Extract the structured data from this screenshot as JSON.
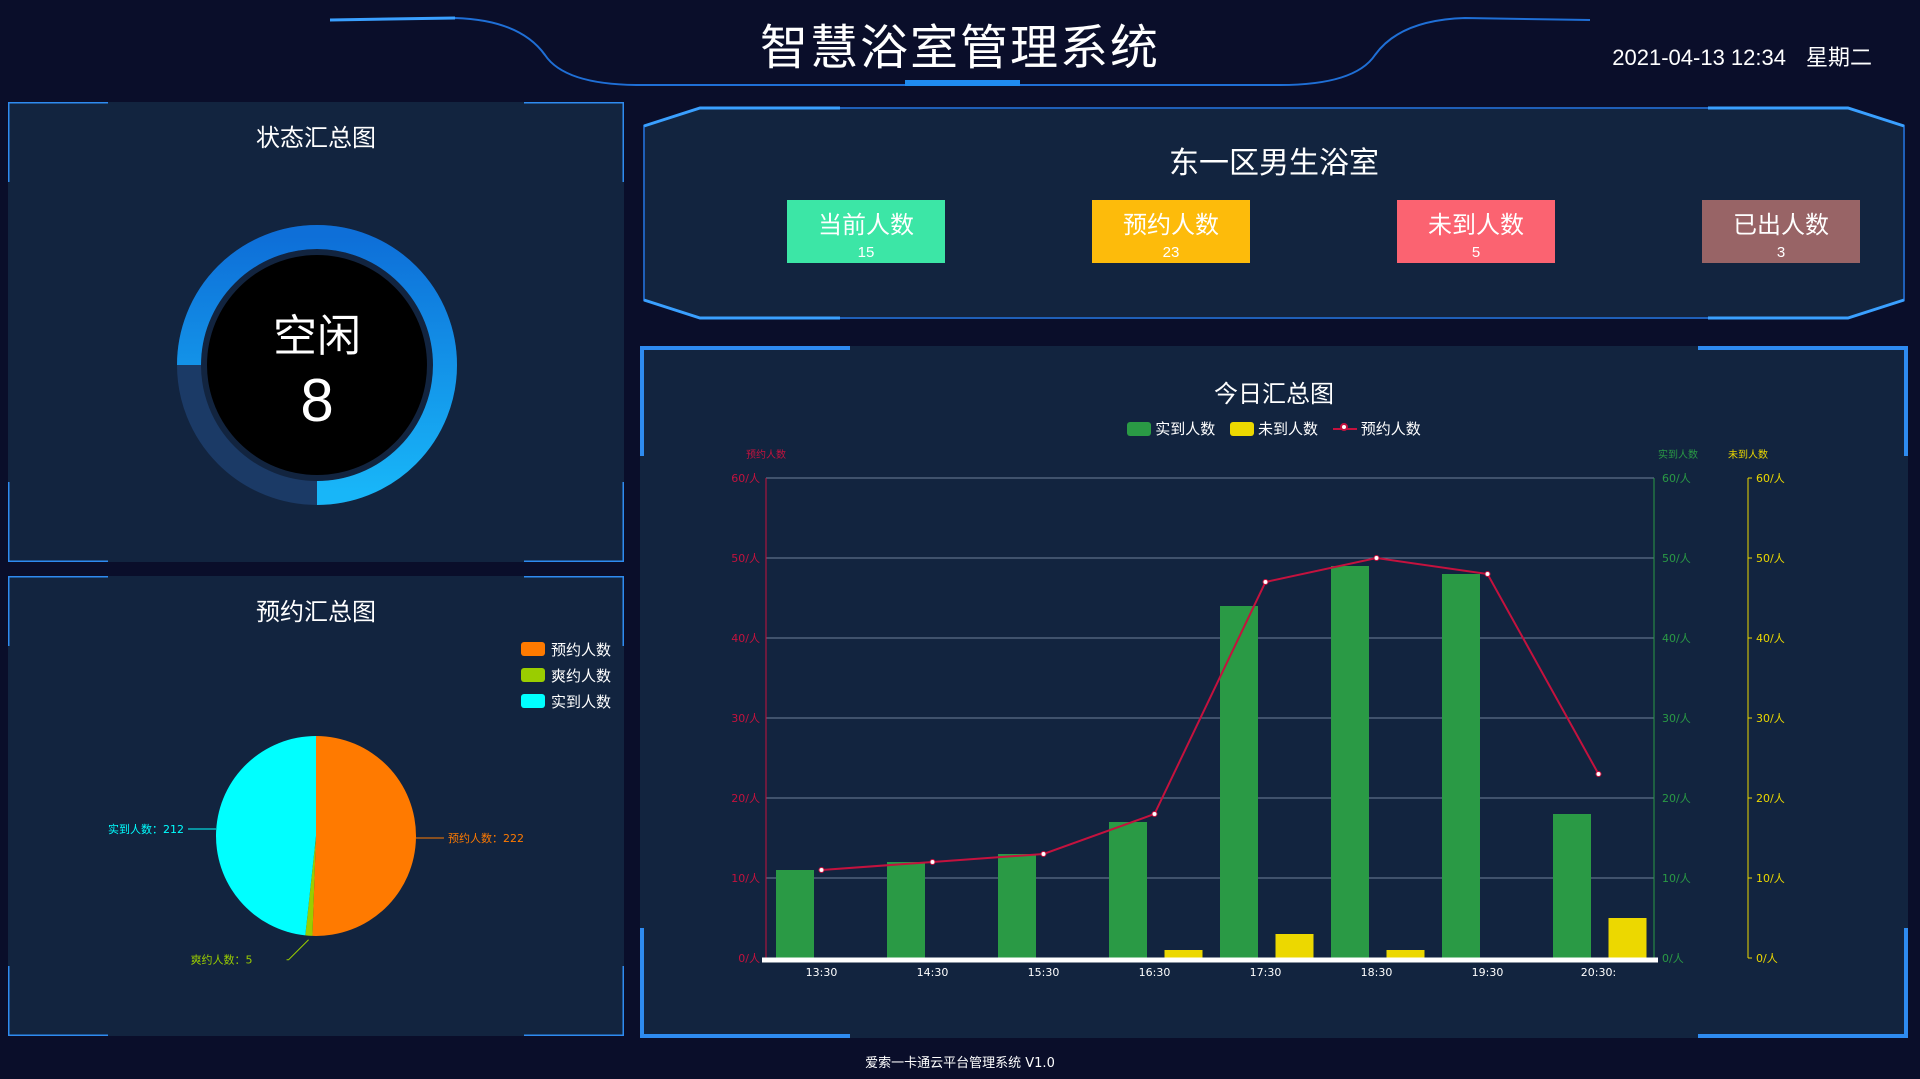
{
  "header": {
    "title": "智慧浴室管理系统",
    "date": "2021-04-13 12:34",
    "weekday": "星期二"
  },
  "status_panel": {
    "title": "状态汇总图",
    "state_label": "空闲",
    "state_value": "8",
    "ring_fraction": 0.75,
    "colors": {
      "ring": "#1a9ff0",
      "track": "#1b3a66",
      "center": "#000000"
    }
  },
  "bathroom_panel": {
    "title": "东一区男生浴室",
    "stats": [
      {
        "label": "当前人数",
        "value": "15",
        "color": "#3ce6a6"
      },
      {
        "label": "预约人数",
        "value": "23",
        "color": "#fdbb0b"
      },
      {
        "label": "未到人数",
        "value": "5",
        "color": "#fb6371"
      },
      {
        "label": "已出人数",
        "value": "3",
        "color": "#986466"
      }
    ]
  },
  "reserve_panel": {
    "title": "预约汇总图",
    "legend": [
      {
        "label": "预约人数",
        "color": "#ff7a00"
      },
      {
        "label": "爽约人数",
        "color": "#9acd00"
      },
      {
        "label": "实到人数",
        "color": "#00ffff"
      }
    ],
    "slice_labels": [
      "预约人数：222",
      "爽约人数：5",
      "实到人数：212"
    ]
  },
  "today_panel": {
    "title": "今日汇总图",
    "legend": [
      "实到人数",
      "未到人数",
      "预约人数"
    ],
    "axis_names": {
      "left": "预约人数",
      "right1": "实到人数",
      "right2": "未到人数"
    },
    "tick_labels": [
      "0/人",
      "10/人",
      "20/人",
      "30/人",
      "40/人",
      "50/人",
      "60/人"
    ]
  },
  "chart_data": [
    {
      "type": "pie",
      "title": "预约汇总图",
      "categories": [
        "预约人数",
        "爽约人数",
        "实到人数"
      ],
      "values": [
        222,
        5,
        212
      ],
      "colors": [
        "#ff7a00",
        "#9acd00",
        "#00ffff"
      ],
      "legend_position": "top-right"
    },
    {
      "type": "bar",
      "title": "今日汇总图",
      "categories": [
        "13:30",
        "14:30",
        "15:30",
        "16:30",
        "17:30",
        "18:30",
        "19:30",
        "20:30:"
      ],
      "ylim": [
        0,
        60
      ],
      "grid": true,
      "legend_position": "top-center",
      "series": [
        {
          "name": "实到人数",
          "type": "bar",
          "color": "#2a9a45",
          "values": [
            11,
            12,
            13,
            17,
            44,
            49,
            48,
            18
          ]
        },
        {
          "name": "未到人数",
          "type": "bar",
          "color": "#ecd800",
          "values": [
            0,
            0,
            0,
            1,
            3,
            1,
            0,
            5
          ]
        },
        {
          "name": "预约人数",
          "type": "line",
          "color": "#c4123e",
          "values": [
            11,
            12,
            13,
            18,
            47,
            50,
            48,
            23
          ]
        }
      ]
    }
  ],
  "footer": {
    "text": "爱索一卡通云平台管理系统 V1.0"
  }
}
